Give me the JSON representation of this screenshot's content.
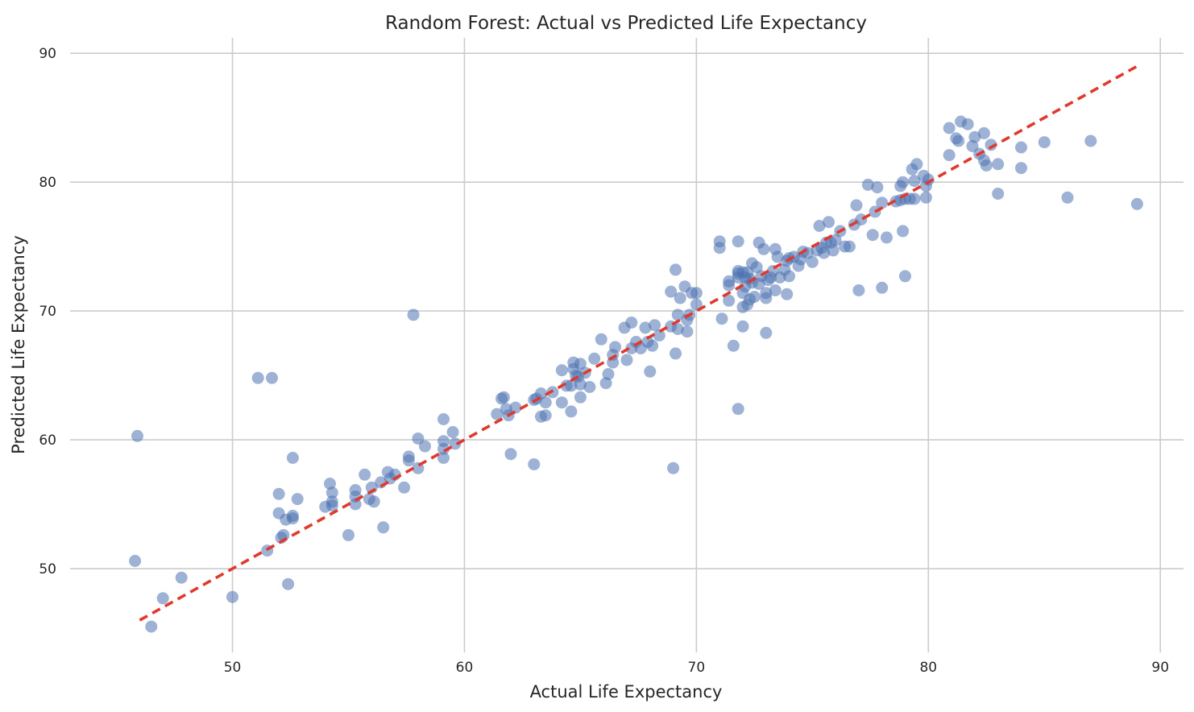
{
  "chart_data": {
    "type": "scatter",
    "title": "Random Forest: Actual vs Predicted Life Expectancy",
    "xlabel": "Actual Life Expectancy",
    "ylabel": "Predicted Life Expectancy",
    "xlim": [
      43,
      91
    ],
    "ylim": [
      43.5,
      91.2
    ],
    "xticks": [
      50,
      60,
      70,
      80,
      90
    ],
    "yticks": [
      50,
      60,
      70,
      80,
      90
    ],
    "grid": true,
    "colors": {
      "points": "#4C72B0",
      "reference_line": "#e0392e",
      "grid": "#cccccc"
    },
    "reference_line": {
      "style": "dashed",
      "from": [
        46,
        46
      ],
      "to": [
        89,
        89
      ]
    },
    "points": [
      [
        45.9,
        60.3
      ],
      [
        45.8,
        50.6
      ],
      [
        46.5,
        45.5
      ],
      [
        47.0,
        47.7
      ],
      [
        47.8,
        49.3
      ],
      [
        50.0,
        47.8
      ],
      [
        51.1,
        64.8
      ],
      [
        51.7,
        64.8
      ],
      [
        51.5,
        51.4
      ],
      [
        52.0,
        55.8
      ],
      [
        52.0,
        54.3
      ],
      [
        52.1,
        52.4
      ],
      [
        52.2,
        52.6
      ],
      [
        52.3,
        53.8
      ],
      [
        52.4,
        48.8
      ],
      [
        52.6,
        58.6
      ],
      [
        52.6,
        54.1
      ],
      [
        52.6,
        53.9
      ],
      [
        52.8,
        55.4
      ],
      [
        54.0,
        54.8
      ],
      [
        54.2,
        56.6
      ],
      [
        54.3,
        55.9
      ],
      [
        54.3,
        55.2
      ],
      [
        54.3,
        54.9
      ],
      [
        55.0,
        52.6
      ],
      [
        55.3,
        56.1
      ],
      [
        55.3,
        55.0
      ],
      [
        55.3,
        55.6
      ],
      [
        55.7,
        57.3
      ],
      [
        55.9,
        55.4
      ],
      [
        56.0,
        56.3
      ],
      [
        56.1,
        55.2
      ],
      [
        56.4,
        56.7
      ],
      [
        56.5,
        53.2
      ],
      [
        56.7,
        57.5
      ],
      [
        56.8,
        57.0
      ],
      [
        57.0,
        57.3
      ],
      [
        57.4,
        56.3
      ],
      [
        57.6,
        58.7
      ],
      [
        57.6,
        58.4
      ],
      [
        57.8,
        69.7
      ],
      [
        58.0,
        57.8
      ],
      [
        58.0,
        60.1
      ],
      [
        58.3,
        59.5
      ],
      [
        59.1,
        61.6
      ],
      [
        59.1,
        59.9
      ],
      [
        59.1,
        59.3
      ],
      [
        59.1,
        58.6
      ],
      [
        59.5,
        60.6
      ],
      [
        59.6,
        59.7
      ],
      [
        61.4,
        62.0
      ],
      [
        61.6,
        63.2
      ],
      [
        61.7,
        63.3
      ],
      [
        61.8,
        62.4
      ],
      [
        61.9,
        61.9
      ],
      [
        62.0,
        58.9
      ],
      [
        62.2,
        62.5
      ],
      [
        63.0,
        63.1
      ],
      [
        63.0,
        58.1
      ],
      [
        63.1,
        63.2
      ],
      [
        63.3,
        63.6
      ],
      [
        63.3,
        61.8
      ],
      [
        63.5,
        62.9
      ],
      [
        63.5,
        61.9
      ],
      [
        63.8,
        63.7
      ],
      [
        64.2,
        65.4
      ],
      [
        64.2,
        62.9
      ],
      [
        64.4,
        64.2
      ],
      [
        64.6,
        64.2
      ],
      [
        64.6,
        62.2
      ],
      [
        64.7,
        65.5
      ],
      [
        64.7,
        66.0
      ],
      [
        64.8,
        65.0
      ],
      [
        64.9,
        64.9
      ],
      [
        65.0,
        63.3
      ],
      [
        65.0,
        64.3
      ],
      [
        65.0,
        65.9
      ],
      [
        65.2,
        65.2
      ],
      [
        65.4,
        64.1
      ],
      [
        65.6,
        66.3
      ],
      [
        65.9,
        67.8
      ],
      [
        66.1,
        64.4
      ],
      [
        66.2,
        65.1
      ],
      [
        66.4,
        66.6
      ],
      [
        66.4,
        66.0
      ],
      [
        66.5,
        67.2
      ],
      [
        66.9,
        68.7
      ],
      [
        67.0,
        66.2
      ],
      [
        67.2,
        69.1
      ],
      [
        67.2,
        67.1
      ],
      [
        67.4,
        67.6
      ],
      [
        67.6,
        67.1
      ],
      [
        67.8,
        68.7
      ],
      [
        67.9,
        67.6
      ],
      [
        68.0,
        65.3
      ],
      [
        68.1,
        67.3
      ],
      [
        68.2,
        68.9
      ],
      [
        68.4,
        68.1
      ],
      [
        68.9,
        71.5
      ],
      [
        68.9,
        68.8
      ],
      [
        69.0,
        57.8
      ],
      [
        69.1,
        73.2
      ],
      [
        69.1,
        66.7
      ],
      [
        69.2,
        69.7
      ],
      [
        69.2,
        68.6
      ],
      [
        69.3,
        71.0
      ],
      [
        69.5,
        71.9
      ],
      [
        69.6,
        68.4
      ],
      [
        69.6,
        69.3
      ],
      [
        69.7,
        69.7
      ],
      [
        69.8,
        71.4
      ],
      [
        70.0,
        71.4
      ],
      [
        70.0,
        70.5
      ],
      [
        71.0,
        75.4
      ],
      [
        71.0,
        74.9
      ],
      [
        71.1,
        69.4
      ],
      [
        71.4,
        72.3
      ],
      [
        71.4,
        72.0
      ],
      [
        71.4,
        70.8
      ],
      [
        71.6,
        67.3
      ],
      [
        71.8,
        75.4
      ],
      [
        71.8,
        72.9
      ],
      [
        71.8,
        72.6
      ],
      [
        71.8,
        73.1
      ],
      [
        71.8,
        62.4
      ],
      [
        72.0,
        70.3
      ],
      [
        72.0,
        71.4
      ],
      [
        72.0,
        73.0
      ],
      [
        72.0,
        68.8
      ],
      [
        72.1,
        72.6
      ],
      [
        72.1,
        71.9
      ],
      [
        72.2,
        73.0
      ],
      [
        72.2,
        70.5
      ],
      [
        72.3,
        70.9
      ],
      [
        72.3,
        72.5
      ],
      [
        72.4,
        73.7
      ],
      [
        72.4,
        72.2
      ],
      [
        72.5,
        71.1
      ],
      [
        72.6,
        73.4
      ],
      [
        72.7,
        75.3
      ],
      [
        72.7,
        72.1
      ],
      [
        72.8,
        72.7
      ],
      [
        72.9,
        74.8
      ],
      [
        73.0,
        71.4
      ],
      [
        73.0,
        68.3
      ],
      [
        73.0,
        71.0
      ],
      [
        73.1,
        72.4
      ],
      [
        73.2,
        72.6
      ],
      [
        73.3,
        73.1
      ],
      [
        73.4,
        71.6
      ],
      [
        73.4,
        74.8
      ],
      [
        73.5,
        74.2
      ],
      [
        73.6,
        72.6
      ],
      [
        73.8,
        73.2
      ],
      [
        73.9,
        71.3
      ],
      [
        73.9,
        73.9
      ],
      [
        74.0,
        74.1
      ],
      [
        74.0,
        72.7
      ],
      [
        74.2,
        74.2
      ],
      [
        74.4,
        73.5
      ],
      [
        74.5,
        74.0
      ],
      [
        74.6,
        74.6
      ],
      [
        74.8,
        74.5
      ],
      [
        75.0,
        73.8
      ],
      [
        75.2,
        74.7
      ],
      [
        75.3,
        76.6
      ],
      [
        75.4,
        74.9
      ],
      [
        75.5,
        74.5
      ],
      [
        75.6,
        75.3
      ],
      [
        75.7,
        76.9
      ],
      [
        75.8,
        75.3
      ],
      [
        75.9,
        74.7
      ],
      [
        76.0,
        75.5
      ],
      [
        76.2,
        76.2
      ],
      [
        76.4,
        75.0
      ],
      [
        76.6,
        75.0
      ],
      [
        76.8,
        76.7
      ],
      [
        76.9,
        78.2
      ],
      [
        77.0,
        71.6
      ],
      [
        77.1,
        77.1
      ],
      [
        77.4,
        79.8
      ],
      [
        77.6,
        75.9
      ],
      [
        77.7,
        77.7
      ],
      [
        77.8,
        79.6
      ],
      [
        78.0,
        78.4
      ],
      [
        78.0,
        71.8
      ],
      [
        78.2,
        75.7
      ],
      [
        78.6,
        78.5
      ],
      [
        78.8,
        79.7
      ],
      [
        78.8,
        78.6
      ],
      [
        78.9,
        80.0
      ],
      [
        78.9,
        76.2
      ],
      [
        79.0,
        78.7
      ],
      [
        79.0,
        72.7
      ],
      [
        79.2,
        78.7
      ],
      [
        79.3,
        81.0
      ],
      [
        79.4,
        80.1
      ],
      [
        79.4,
        78.7
      ],
      [
        79.5,
        81.4
      ],
      [
        79.8,
        80.5
      ],
      [
        79.9,
        79.7
      ],
      [
        79.9,
        78.8
      ],
      [
        80.0,
        80.2
      ],
      [
        80.9,
        84.2
      ],
      [
        80.9,
        82.1
      ],
      [
        81.2,
        83.4
      ],
      [
        81.3,
        83.2
      ],
      [
        81.4,
        84.7
      ],
      [
        81.7,
        84.5
      ],
      [
        81.9,
        82.8
      ],
      [
        82.0,
        83.5
      ],
      [
        82.2,
        82.2
      ],
      [
        82.4,
        81.7
      ],
      [
        82.4,
        83.8
      ],
      [
        82.5,
        81.3
      ],
      [
        82.7,
        82.9
      ],
      [
        83.0,
        81.4
      ],
      [
        83.0,
        79.1
      ],
      [
        84.0,
        82.7
      ],
      [
        84.0,
        81.1
      ],
      [
        85.0,
        83.1
      ],
      [
        86.0,
        78.8
      ],
      [
        87.0,
        83.2
      ],
      [
        89.0,
        78.3
      ]
    ]
  }
}
